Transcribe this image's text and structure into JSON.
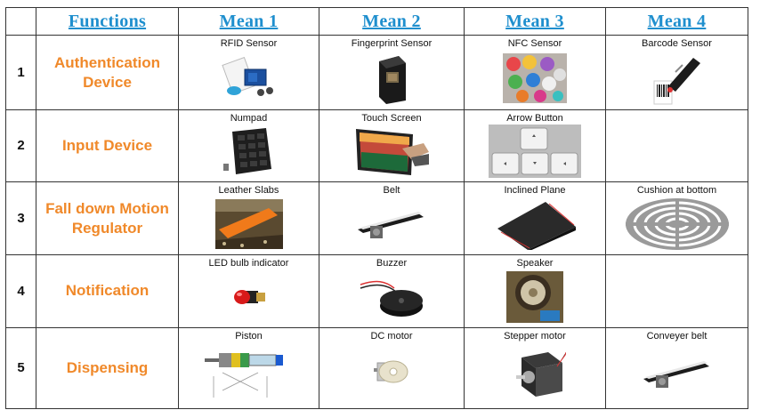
{
  "header": {
    "functions": "Functions",
    "mean1": "Mean 1",
    "mean2": "Mean 2",
    "mean3": "Mean 3",
    "mean4": "Mean 4"
  },
  "rows": [
    {
      "number": "1",
      "function": "Authentication Device",
      "means": [
        "RFID Sensor",
        "Fingerprint Sensor",
        "NFC  Sensor",
        "Barcode Sensor"
      ]
    },
    {
      "number": "2",
      "function": "Input Device",
      "means": [
        "Numpad",
        "Touch Screen",
        "Arrow Button",
        ""
      ]
    },
    {
      "number": "3",
      "function": "Fall down Motion Regulator",
      "means": [
        "Leather Slabs",
        "Belt",
        "Inclined Plane",
        "Cushion at bottom"
      ]
    },
    {
      "number": "4",
      "function": "Notification",
      "means": [
        "LED bulb indicator",
        "Buzzer",
        "Speaker",
        ""
      ]
    },
    {
      "number": "5",
      "function": "Dispensing",
      "means": [
        "Piston",
        "DC motor",
        "Stepper motor",
        "Conveyer belt"
      ]
    }
  ],
  "icons": {
    "r1": [
      "rfid-kit-image",
      "fingerprint-sensor-image",
      "nfc-tags-image",
      "barcode-scanner-image"
    ],
    "r2": [
      "numpad-image",
      "touch-screen-image",
      "arrow-keys-image"
    ],
    "r3": [
      "leather-slabs-image",
      "belt-conveyor-image",
      "inclined-plane-image",
      "cushion-grate-image"
    ],
    "r4": [
      "led-bulb-image",
      "buzzer-image",
      "speaker-image"
    ],
    "r5": [
      "piston-diagram-image",
      "dc-motor-image",
      "stepper-motor-image",
      "conveyer-belt-image"
    ]
  }
}
